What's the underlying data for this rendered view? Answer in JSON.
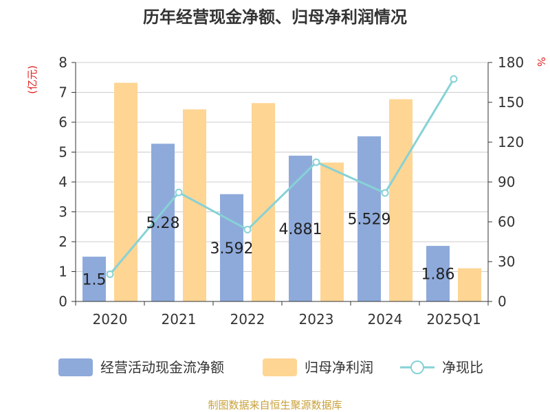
{
  "colors": {
    "cash_flow": "#8eaadb",
    "net_profit": "#fed593",
    "ratio": "#86d2d6",
    "axis_unit_red": "#e0201e",
    "footer": "#c9a13a",
    "text": "#333333",
    "grid": "#cccccc"
  },
  "chart_data": {
    "type": "bar",
    "title": "历年经营现金净额、归母净利润情况",
    "categories": [
      "2020",
      "2021",
      "2022",
      "2023",
      "2024",
      "2025Q1"
    ],
    "series": [
      {
        "name": "经营活动现金流净额",
        "type": "bar",
        "axis": "left",
        "values": [
          1.5,
          5.28,
          3.592,
          4.881,
          5.529,
          1.86
        ],
        "labels": [
          "1.5",
          "5.28",
          "3.592",
          "4.881",
          "5.529",
          "1.86"
        ]
      },
      {
        "name": "归母净利润",
        "type": "bar",
        "axis": "left",
        "values": [
          7.32,
          6.43,
          6.64,
          4.65,
          6.77,
          1.11
        ]
      },
      {
        "name": "净现比",
        "type": "line",
        "axis": "right",
        "values": [
          20.5,
          82.1,
          54.1,
          104.9,
          81.7,
          167.6
        ]
      }
    ],
    "left_axis": {
      "label": "(亿元)",
      "min": 0,
      "max": 8,
      "ticks": [
        "0",
        "1",
        "2",
        "3",
        "4",
        "5",
        "6",
        "7",
        "8"
      ]
    },
    "right_axis": {
      "label": "%",
      "min": 0,
      "max": 180,
      "ticks": [
        "0",
        "30",
        "60",
        "90",
        "120",
        "150",
        "180"
      ]
    },
    "legend_position": "bottom",
    "grid": true
  },
  "footer": "制图数据来自恒生聚源数据库"
}
